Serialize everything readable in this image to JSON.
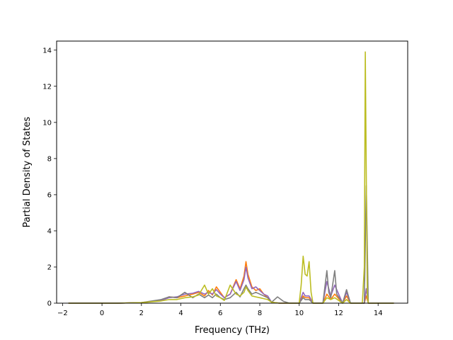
{
  "chart_data": {
    "type": "line",
    "title": "",
    "xlabel": "Frequency (THz)",
    "ylabel": "Partial Density of States",
    "xlim": [
      -2.3,
      15.5
    ],
    "ylim": [
      0,
      14.5
    ],
    "xticks": [
      -2,
      0,
      2,
      4,
      6,
      8,
      10,
      12,
      14
    ],
    "yticks": [
      0,
      2,
      4,
      6,
      8,
      10,
      12,
      14
    ],
    "grid": false,
    "legend": "none",
    "colors": [
      "#ff7f0e",
      "#9467bd",
      "#7f7f7f",
      "#bcbd22"
    ],
    "series": [
      {
        "color": "#ff7f0e",
        "x": [
          -1.7,
          0.8,
          2.0,
          3.0,
          3.4,
          3.8,
          4.2,
          4.6,
          4.9,
          5.2,
          5.4,
          5.6,
          5.8,
          6.0,
          6.2,
          6.5,
          6.8,
          7.0,
          7.2,
          7.3,
          7.4,
          7.6,
          7.8,
          8.0,
          8.2,
          8.4,
          8.6,
          9.0,
          10.0,
          10.2,
          10.3,
          10.5,
          10.7,
          11.2,
          11.4,
          11.6,
          11.8,
          12.2,
          12.4,
          12.6,
          13.3,
          13.4,
          13.5,
          14.8
        ],
        "y": [
          0,
          0,
          0.03,
          0.15,
          0.35,
          0.3,
          0.4,
          0.5,
          0.6,
          0.4,
          0.7,
          0.45,
          0.9,
          0.6,
          0.3,
          0.5,
          1.3,
          0.8,
          1.5,
          2.3,
          1.6,
          0.9,
          0.7,
          0.8,
          0.5,
          0.3,
          0.05,
          0,
          0,
          0.4,
          0.3,
          0.3,
          0,
          0,
          0.5,
          0.2,
          0.5,
          0,
          0.4,
          0,
          0,
          0.4,
          0,
          0
        ]
      },
      {
        "color": "#9467bd",
        "x": [
          -1.7,
          0.8,
          2.0,
          3.0,
          3.4,
          3.8,
          4.2,
          4.6,
          4.9,
          5.2,
          5.4,
          5.6,
          5.8,
          6.0,
          6.2,
          6.5,
          6.8,
          7.0,
          7.2,
          7.3,
          7.4,
          7.6,
          7.8,
          8.0,
          8.2,
          8.4,
          8.6,
          9.0,
          10.0,
          10.2,
          10.3,
          10.5,
          10.7,
          11.2,
          11.4,
          11.6,
          11.8,
          12.2,
          12.4,
          12.6,
          13.3,
          13.4,
          13.5,
          14.8
        ],
        "y": [
          0,
          0,
          0.03,
          0.15,
          0.3,
          0.35,
          0.5,
          0.55,
          0.65,
          0.5,
          0.6,
          0.5,
          0.75,
          0.5,
          0.3,
          0.5,
          1.2,
          0.7,
          1.3,
          2.0,
          1.4,
          0.8,
          0.9,
          0.7,
          0.5,
          0.4,
          0.05,
          0,
          0,
          0.6,
          0.4,
          0.4,
          0,
          0,
          1.2,
          0.4,
          1.0,
          0,
          0.6,
          0,
          0,
          0.8,
          0,
          0
        ]
      },
      {
        "color": "#7f7f7f",
        "x": [
          -1.7,
          0.8,
          2.0,
          3.0,
          3.4,
          3.8,
          4.2,
          4.6,
          4.9,
          5.2,
          5.4,
          5.6,
          5.8,
          6.0,
          6.2,
          6.5,
          6.8,
          7.0,
          7.2,
          7.3,
          7.4,
          7.6,
          7.8,
          8.0,
          8.2,
          8.4,
          8.6,
          8.9,
          9.2,
          9.5,
          10.0,
          10.2,
          10.3,
          10.5,
          10.7,
          11.2,
          11.4,
          11.5,
          11.6,
          11.8,
          11.9,
          12.2,
          12.4,
          12.6,
          13.3,
          13.4,
          13.5,
          14.8
        ],
        "y": [
          0,
          0,
          0.03,
          0.2,
          0.35,
          0.3,
          0.6,
          0.3,
          0.5,
          0.3,
          0.45,
          0.3,
          0.5,
          0.3,
          0.2,
          0.3,
          0.6,
          0.35,
          0.8,
          1.0,
          0.8,
          0.5,
          0.6,
          0.5,
          0.4,
          0.3,
          0.05,
          0.35,
          0.1,
          0,
          0,
          0.3,
          0.2,
          0.2,
          0,
          0,
          1.8,
          0.6,
          0.3,
          1.8,
          0.5,
          0,
          0.75,
          0,
          0,
          6.5,
          0,
          0
        ]
      },
      {
        "color": "#bcbd22",
        "x": [
          -1.7,
          0.8,
          2.0,
          3.0,
          3.4,
          3.8,
          4.2,
          4.6,
          4.9,
          5.2,
          5.4,
          5.6,
          5.8,
          6.0,
          6.2,
          6.5,
          6.8,
          7.0,
          7.2,
          7.3,
          7.4,
          7.6,
          7.8,
          8.0,
          8.2,
          8.4,
          8.6,
          9.0,
          10.0,
          10.1,
          10.2,
          10.3,
          10.4,
          10.5,
          10.6,
          10.7,
          11.2,
          11.4,
          11.6,
          11.8,
          12.2,
          12.4,
          12.6,
          13.2,
          13.3,
          13.35,
          13.4,
          13.45,
          13.5,
          14.8
        ],
        "y": [
          0,
          0,
          0.03,
          0.12,
          0.2,
          0.2,
          0.3,
          0.35,
          0.45,
          1.0,
          0.5,
          0.8,
          0.4,
          0.3,
          0.15,
          1.0,
          0.5,
          0.4,
          0.6,
          0.9,
          0.7,
          0.4,
          0.35,
          0.3,
          0.25,
          0.2,
          0.05,
          0,
          0,
          1.0,
          2.6,
          1.6,
          1.5,
          2.3,
          0.6,
          0,
          0,
          0.3,
          0.2,
          0.3,
          0,
          0.2,
          0,
          0,
          2.0,
          13.9,
          7.0,
          0.5,
          0,
          0
        ]
      }
    ]
  }
}
